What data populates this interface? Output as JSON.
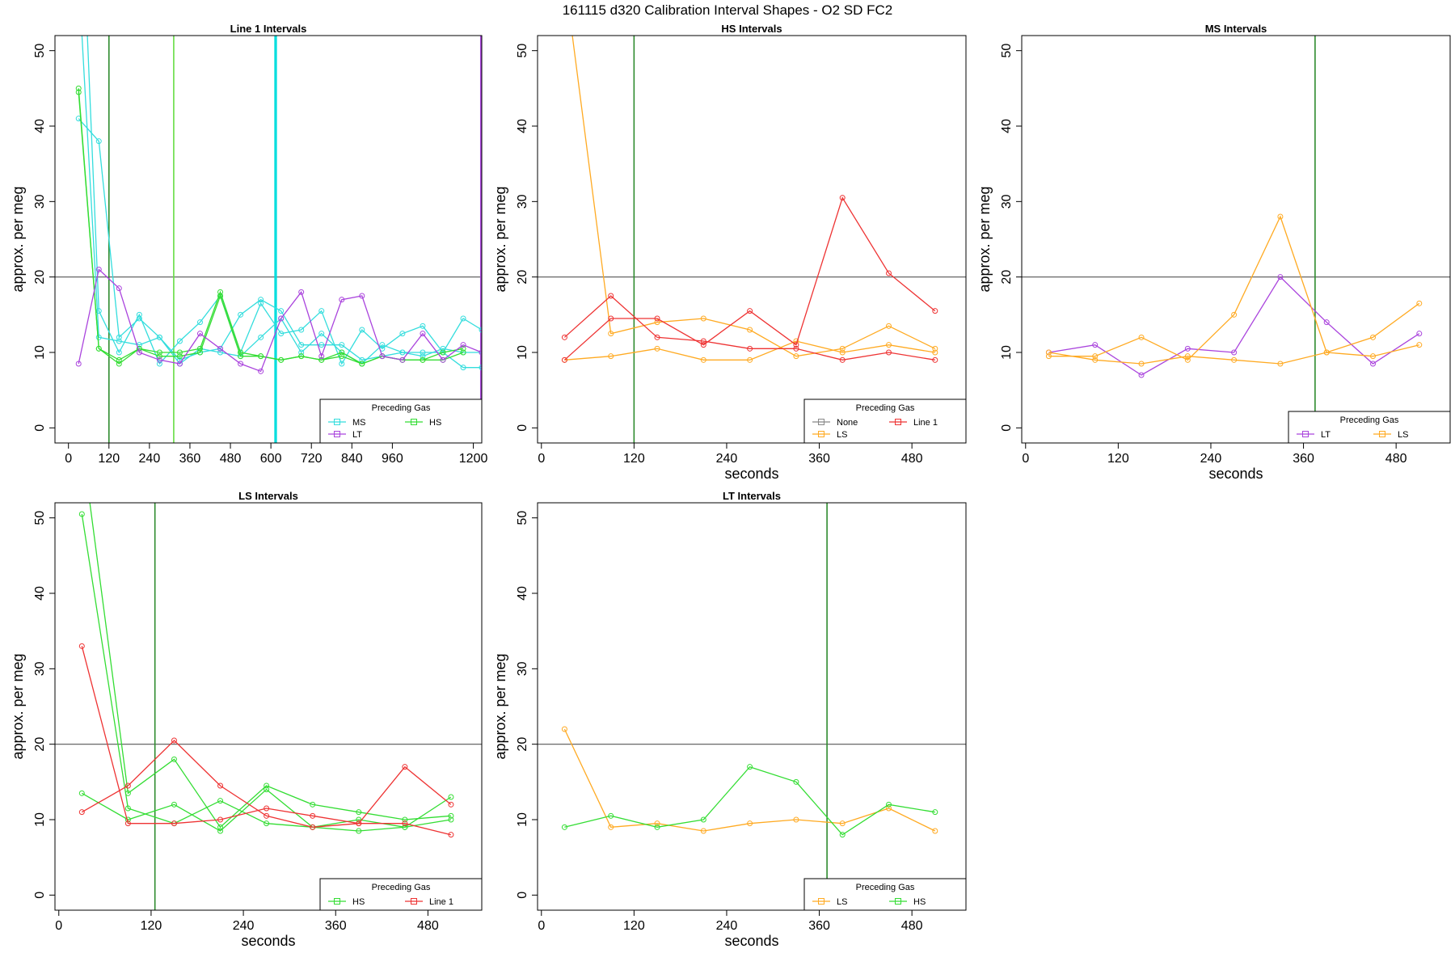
{
  "figure_title": "161115   d320   Calibration Interval Shapes - O2 SD FC2",
  "colors": {
    "MS": "#33dddd",
    "HS": "#33dd33",
    "LT": "#aa44dd",
    "LS": "#ffaa22",
    "Line 1": "#ee3333",
    "None": "#888888",
    "ref_line": "#555555",
    "vline_dark": "#2e8b2e",
    "vline_light": "#66dd44",
    "vline_cyan": "#00dddd",
    "vline_purple": "#aa44dd"
  },
  "chart_data": [
    {
      "type": "line",
      "title": "Line 1 Intervals",
      "xlabel": "",
      "ylabel": "approx. per meg",
      "xlim": [
        -40,
        1225
      ],
      "ylim": [
        -2,
        52
      ],
      "xticks": [
        0,
        120,
        240,
        360,
        480,
        600,
        720,
        840,
        960,
        1200
      ],
      "yticks": [
        0,
        10,
        20,
        30,
        40,
        50
      ],
      "hline": 20,
      "vlines": [
        {
          "x": 120,
          "color_key": "vline_dark"
        },
        {
          "x": 312,
          "color_key": "vline_light"
        },
        {
          "x": 612,
          "color_key": "vline_cyan"
        },
        {
          "x": 616,
          "color_key": "vline_cyan"
        },
        {
          "x": 1222,
          "color_key": "vline_purple"
        }
      ],
      "legend": {
        "title": "Preceding Gas",
        "position": "bottom-right",
        "entries": [
          "MS",
          "HS",
          "LT"
        ],
        "columns": 2
      },
      "series": [
        {
          "name": "MS",
          "x": [
            30,
            90,
            150,
            210,
            270,
            330,
            390,
            450,
            510,
            570,
            630,
            690,
            750,
            810,
            870,
            930,
            990,
            1050,
            1110,
            1170,
            1225
          ],
          "y": [
            41,
            38,
            12,
            14.5,
            12,
            9,
            10,
            10.5,
            15,
            17,
            15.5,
            11,
            11,
            11,
            9,
            9.5,
            10,
            10,
            10,
            8,
            8
          ]
        },
        {
          "name": "MS",
          "x": [
            30,
            90,
            150,
            210,
            270,
            330,
            390,
            450,
            510,
            570,
            630,
            690,
            750,
            810,
            870,
            930,
            990,
            1050,
            1110,
            1170,
            1225
          ],
          "y": [
            80,
            15.5,
            10,
            15,
            8.5,
            11.5,
            14,
            17.5,
            10,
            16.5,
            12.5,
            13,
            15.5,
            8.5,
            13,
            10.5,
            12.5,
            13.5,
            10,
            14.5,
            13
          ]
        },
        {
          "name": "MS",
          "x": [
            30,
            90,
            150,
            210,
            270,
            330,
            390,
            450,
            510,
            570,
            630,
            690,
            750,
            810,
            870,
            930,
            990,
            1050,
            1110,
            1170,
            1225
          ],
          "y": [
            60,
            12,
            11.5,
            11,
            12,
            8.5,
            10.5,
            10,
            9.5,
            12,
            14.5,
            10,
            12.5,
            10,
            8.5,
            11,
            10,
            9.5,
            10.5,
            10,
            10
          ]
        },
        {
          "name": "HS",
          "x": [
            30,
            90,
            150,
            210,
            270,
            330,
            390,
            450,
            510,
            570,
            630,
            690,
            750,
            810,
            870,
            930,
            990,
            1050,
            1110,
            1170
          ],
          "y": [
            44.5,
            10.5,
            9,
            10.5,
            10,
            10,
            10.5,
            18,
            10,
            9.5,
            9,
            9.5,
            9,
            10,
            8.5,
            9.5,
            9,
            9,
            10,
            10.5
          ]
        },
        {
          "name": "HS",
          "x": [
            30,
            90,
            150,
            210,
            270,
            330,
            390,
            450,
            510,
            570,
            630,
            690,
            750,
            810,
            870,
            930,
            990,
            1050,
            1110,
            1170
          ],
          "y": [
            45,
            10.5,
            8.5,
            10.5,
            9.5,
            9.5,
            10,
            17.5,
            9.5,
            9.5,
            9,
            9.5,
            9,
            9.5,
            8.5,
            9.5,
            9,
            9,
            9,
            10
          ]
        },
        {
          "name": "LT",
          "x": [
            30,
            90,
            150,
            210,
            270,
            330,
            390,
            450,
            510,
            570,
            630,
            690,
            750,
            810,
            870,
            930,
            990,
            1050,
            1110,
            1170,
            1225
          ],
          "y": [
            8.5,
            21,
            18.5,
            10,
            9,
            8.5,
            12.5,
            10.5,
            8.5,
            7.5,
            14.5,
            18,
            9.5,
            17,
            17.5,
            9.5,
            9,
            12.5,
            9,
            11,
            10
          ]
        }
      ]
    },
    {
      "type": "line",
      "title": "HS Intervals",
      "xlabel": "seconds",
      "ylabel": "approx. per meg",
      "xlim": [
        -5,
        550
      ],
      "ylim": [
        -2,
        52
      ],
      "xticks": [
        0,
        120,
        240,
        360,
        480
      ],
      "yticks": [
        0,
        10,
        20,
        30,
        40,
        50
      ],
      "hline": 20,
      "vlines": [
        {
          "x": 120,
          "color_key": "vline_dark"
        }
      ],
      "legend": {
        "title": "Preceding Gas",
        "position": "bottom-right",
        "entries": [
          "None",
          "Line 1",
          "LS"
        ],
        "columns": 2
      },
      "series": [
        {
          "name": "LS",
          "x": [
            30,
            90,
            150,
            210,
            270,
            330,
            390,
            450,
            510
          ],
          "y": [
            60,
            12.5,
            14,
            14.5,
            13,
            9.5,
            10.5,
            13.5,
            10.5
          ]
        },
        {
          "name": "LS",
          "x": [
            30,
            90,
            150,
            210,
            270,
            330,
            390,
            450,
            510
          ],
          "y": [
            9,
            9.5,
            10.5,
            9,
            9,
            11.5,
            10,
            11,
            10
          ]
        },
        {
          "name": "Line 1",
          "x": [
            30,
            90,
            150,
            210,
            270,
            330,
            390,
            450,
            510
          ],
          "y": [
            12,
            17.5,
            12,
            11.5,
            10.5,
            10.5,
            9,
            10,
            9
          ]
        },
        {
          "name": "Line 1",
          "x": [
            30,
            90,
            150,
            210,
            270,
            330,
            390,
            450,
            510
          ],
          "y": [
            9,
            14.5,
            14.5,
            11,
            15.5,
            11,
            30.5,
            20.5,
            15.5
          ]
        }
      ]
    },
    {
      "type": "line",
      "title": "MS Intervals",
      "xlabel": "seconds",
      "ylabel": "approx. per meg",
      "xlim": [
        -5,
        550
      ],
      "ylim": [
        -2,
        52
      ],
      "xticks": [
        0,
        120,
        240,
        360,
        480
      ],
      "yticks": [
        0,
        10,
        20,
        30,
        40,
        50
      ],
      "hline": 20,
      "vlines": [
        {
          "x": 375,
          "color_key": "vline_dark"
        }
      ],
      "legend": {
        "title": "Preceding Gas",
        "position": "bottom-right",
        "entries": [
          "LT",
          "LS"
        ],
        "columns": 2
      },
      "series": [
        {
          "name": "LT",
          "x": [
            30,
            90,
            150,
            210,
            270,
            330,
            390,
            450,
            510
          ],
          "y": [
            10,
            11,
            7,
            10.5,
            10,
            20,
            14,
            8.5,
            12.5
          ]
        },
        {
          "name": "LS",
          "x": [
            30,
            90,
            150,
            210,
            270,
            330,
            390,
            450,
            510
          ],
          "y": [
            9.5,
            9.5,
            12,
            9,
            15,
            28,
            10,
            12,
            16.5
          ]
        },
        {
          "name": "LS",
          "x": [
            30,
            90,
            150,
            210,
            270,
            330,
            390,
            450,
            510
          ],
          "y": [
            10,
            9,
            8.5,
            9.5,
            9,
            8.5,
            10,
            9.5,
            11
          ]
        }
      ]
    },
    {
      "type": "line",
      "title": "LS Intervals",
      "xlabel": "seconds",
      "ylabel": "approx. per meg",
      "xlim": [
        -5,
        550
      ],
      "ylim": [
        -2,
        52
      ],
      "xticks": [
        0,
        120,
        240,
        360,
        480
      ],
      "yticks": [
        0,
        10,
        20,
        30,
        40,
        50
      ],
      "hline": 20,
      "vlines": [
        {
          "x": 125,
          "color_key": "vline_dark"
        }
      ],
      "legend": {
        "title": "Preceding Gas",
        "position": "bottom-right",
        "entries": [
          "HS",
          "Line 1"
        ],
        "columns": 2
      },
      "series": [
        {
          "name": "HS",
          "x": [
            30,
            90,
            150,
            210,
            270,
            330,
            390,
            450,
            510
          ],
          "y": [
            50.5,
            11.5,
            9.5,
            12.5,
            9.5,
            9,
            8.5,
            9,
            13
          ]
        },
        {
          "name": "HS",
          "x": [
            30,
            90,
            150,
            210,
            270,
            330,
            390,
            450,
            510
          ],
          "y": [
            60,
            13.5,
            18,
            9,
            14.5,
            12,
            11,
            10,
            10.5
          ]
        },
        {
          "name": "HS",
          "x": [
            30,
            90,
            150,
            210,
            270,
            330,
            390,
            450,
            510
          ],
          "y": [
            13.5,
            10,
            12,
            8.5,
            14,
            9,
            10,
            9,
            10
          ]
        },
        {
          "name": "Line 1",
          "x": [
            30,
            90,
            150,
            210,
            270,
            330,
            390,
            450,
            510
          ],
          "y": [
            33,
            9.5,
            9.5,
            10,
            11.5,
            10.5,
            9.5,
            9.5,
            8
          ]
        },
        {
          "name": "Line 1",
          "x": [
            30,
            90,
            150,
            210,
            270,
            330,
            390,
            450,
            510
          ],
          "y": [
            11,
            14.5,
            20.5,
            14.5,
            10.5,
            9,
            9.5,
            17,
            12
          ]
        }
      ]
    },
    {
      "type": "line",
      "title": "LT Intervals",
      "xlabel": "seconds",
      "ylabel": "approx. per meg",
      "xlim": [
        -5,
        550
      ],
      "ylim": [
        -2,
        52
      ],
      "xticks": [
        0,
        120,
        240,
        360,
        480
      ],
      "yticks": [
        0,
        10,
        20,
        30,
        40,
        50
      ],
      "hline": 20,
      "vlines": [
        {
          "x": 370,
          "color_key": "vline_dark"
        }
      ],
      "legend": {
        "title": "Preceding Gas",
        "position": "bottom-right",
        "entries": [
          "LS",
          "HS"
        ],
        "columns": 2
      },
      "series": [
        {
          "name": "LS",
          "x": [
            30,
            90,
            150,
            210,
            270,
            330,
            390,
            450,
            510
          ],
          "y": [
            22,
            9,
            9.5,
            8.5,
            9.5,
            10,
            9.5,
            11.5,
            8.5
          ]
        },
        {
          "name": "HS",
          "x": [
            30,
            90,
            150,
            210,
            270,
            330,
            390,
            450,
            510
          ],
          "y": [
            9,
            10.5,
            9,
            10,
            17,
            15,
            8,
            12,
            11
          ]
        }
      ]
    }
  ]
}
